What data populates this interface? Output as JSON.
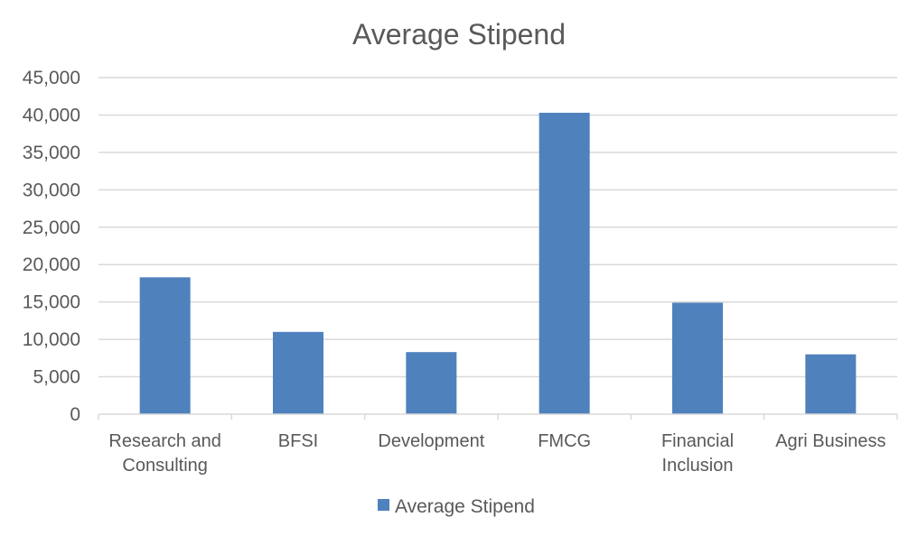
{
  "chart_data": {
    "type": "bar",
    "title": "Average Stipend",
    "xlabel": "",
    "ylabel": "",
    "categories": [
      "Research and Consulting",
      "BFSI",
      "Development",
      "FMCG",
      "Financial Inclusion",
      "Agri Business"
    ],
    "category_label_lines": [
      [
        "Research and",
        "Consulting"
      ],
      [
        "BFSI"
      ],
      [
        "Development"
      ],
      [
        "FMCG"
      ],
      [
        "Financial",
        "Inclusion"
      ],
      [
        "Agri Business"
      ]
    ],
    "series": [
      {
        "name": "Average Stipend",
        "values": [
          18300,
          11000,
          8300,
          40300,
          14900,
          8000
        ],
        "color": "#4f81bd"
      }
    ],
    "ylim": [
      0,
      45000
    ],
    "y_ticks": [
      0,
      5000,
      10000,
      15000,
      20000,
      25000,
      30000,
      35000,
      40000,
      45000
    ],
    "y_tick_labels": [
      "0",
      "5,000",
      "10,000",
      "15,000",
      "20,000",
      "25,000",
      "30,000",
      "35,000",
      "40,000",
      "45,000"
    ],
    "grid": true,
    "legend": "bottom"
  }
}
